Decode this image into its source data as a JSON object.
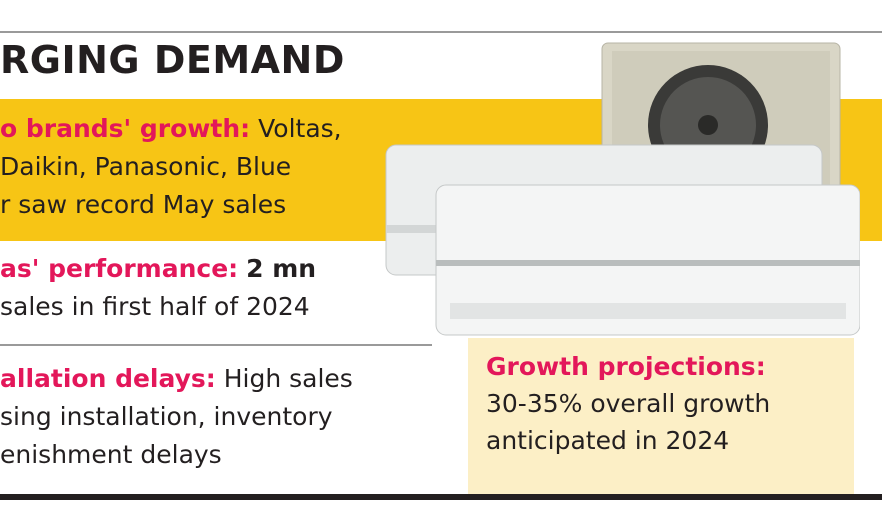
{
  "title": "RGING DEMAND",
  "items": [
    {
      "label": "o brands' growth:",
      "rest": "Voltas,",
      "lines": [
        "Daikin, Panasonic, Blue",
        "r saw record May sales"
      ]
    },
    {
      "label": "as' performance:",
      "highlight": "2 mn",
      "lines": [
        "sales in first half of 2024"
      ]
    },
    {
      "label": "allation delays:",
      "rest": "High sales",
      "lines": [
        "sing installation, inventory",
        "enishment delays"
      ]
    }
  ],
  "projection": {
    "label": "Growth projections:",
    "lines": [
      "30-35% overall growth",
      "anticipated in 2024"
    ]
  }
}
